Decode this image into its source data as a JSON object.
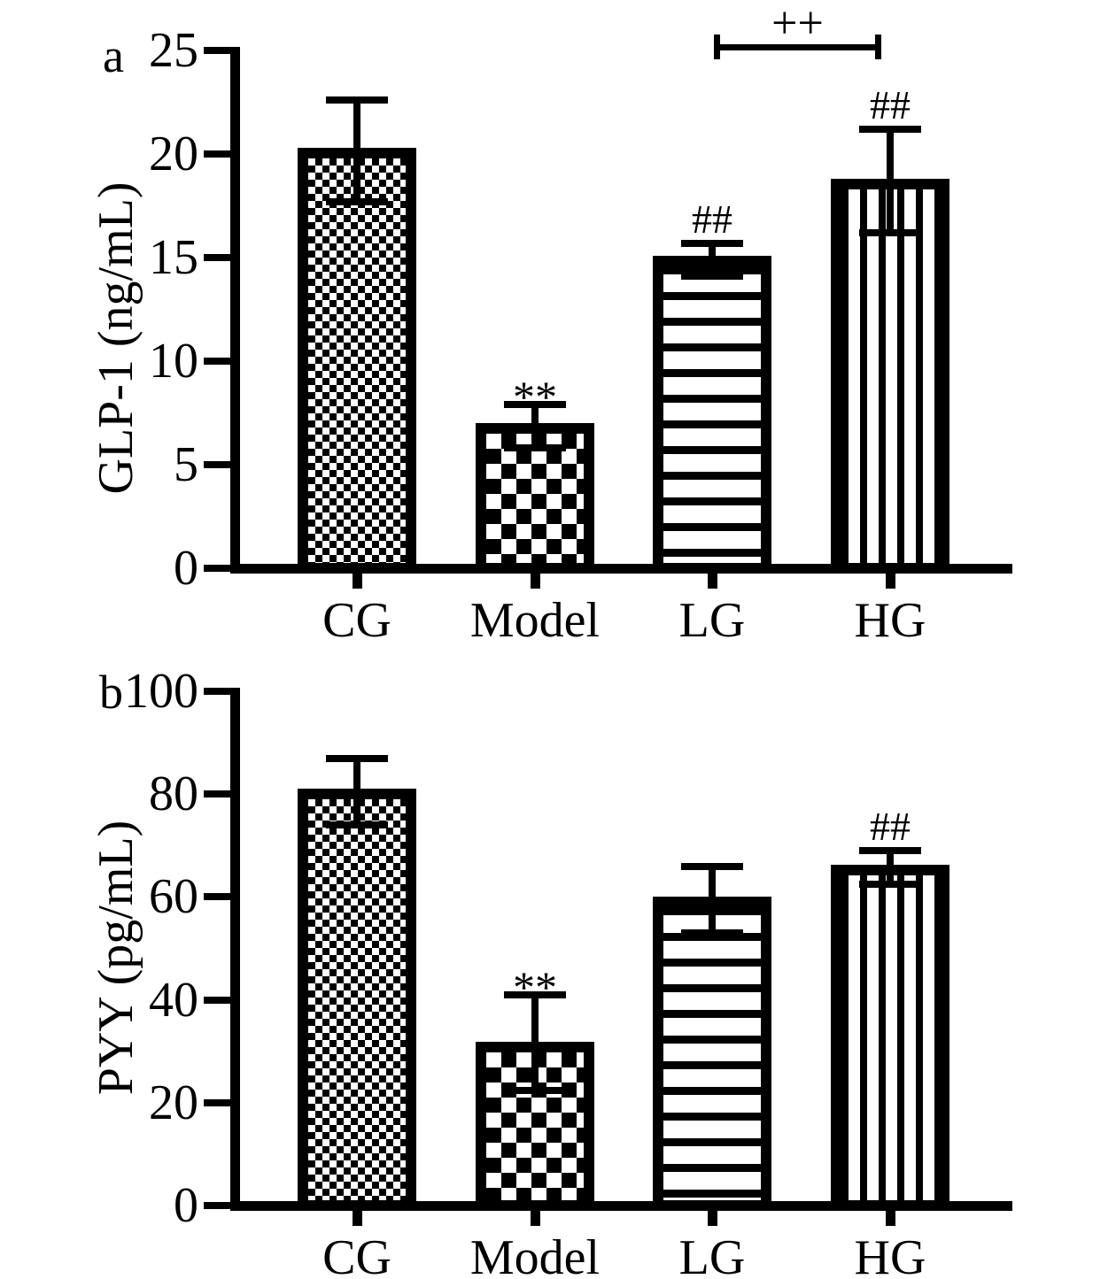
{
  "figure": {
    "type": "two-panel-bar-figure",
    "colors": {
      "ink": "#000000",
      "background": "#ffffff"
    }
  },
  "chart_data": [
    {
      "type": "bar",
      "panel_label": "a",
      "ylabel": "GLP-1 (ng/mL)",
      "xlabel": "",
      "categories": [
        "CG",
        "Model",
        "LG",
        "HG"
      ],
      "values": [
        20.3,
        7.0,
        15.1,
        18.8
      ],
      "error_upper": [
        22.6,
        7.9,
        15.7,
        21.2
      ],
      "error_lower": [
        17.7,
        5.8,
        14.1,
        16.2
      ],
      "yticks": [
        0,
        5,
        10,
        15,
        20,
        25
      ],
      "ylim": [
        0,
        25
      ],
      "grid": false,
      "legend": "none",
      "annotations": [
        null,
        "**",
        "##",
        "##"
      ],
      "bracket": {
        "from_index": 2,
        "to_index": 3,
        "label": "++"
      },
      "bar_patterns": [
        "checker-fine",
        "checker-coarse",
        "stripes-horizontal",
        "stripes-vertical"
      ]
    },
    {
      "type": "bar",
      "panel_label": "b",
      "ylabel": "PYY (pg/mL)",
      "xlabel": "",
      "categories": [
        "CG",
        "Model",
        "LG",
        "HG"
      ],
      "values": [
        81,
        31.8,
        60,
        66.3
      ],
      "error_upper": [
        87,
        41,
        66,
        69
      ],
      "error_lower": [
        74,
        22.3,
        53,
        62.5
      ],
      "yticks": [
        0,
        20,
        40,
        60,
        80,
        100
      ],
      "ylim": [
        0,
        100
      ],
      "grid": false,
      "legend": "none",
      "annotations": [
        null,
        "**",
        null,
        "##"
      ],
      "bracket": null,
      "bar_patterns": [
        "checker-fine",
        "checker-coarse",
        "stripes-horizontal",
        "stripes-vertical"
      ]
    }
  ]
}
